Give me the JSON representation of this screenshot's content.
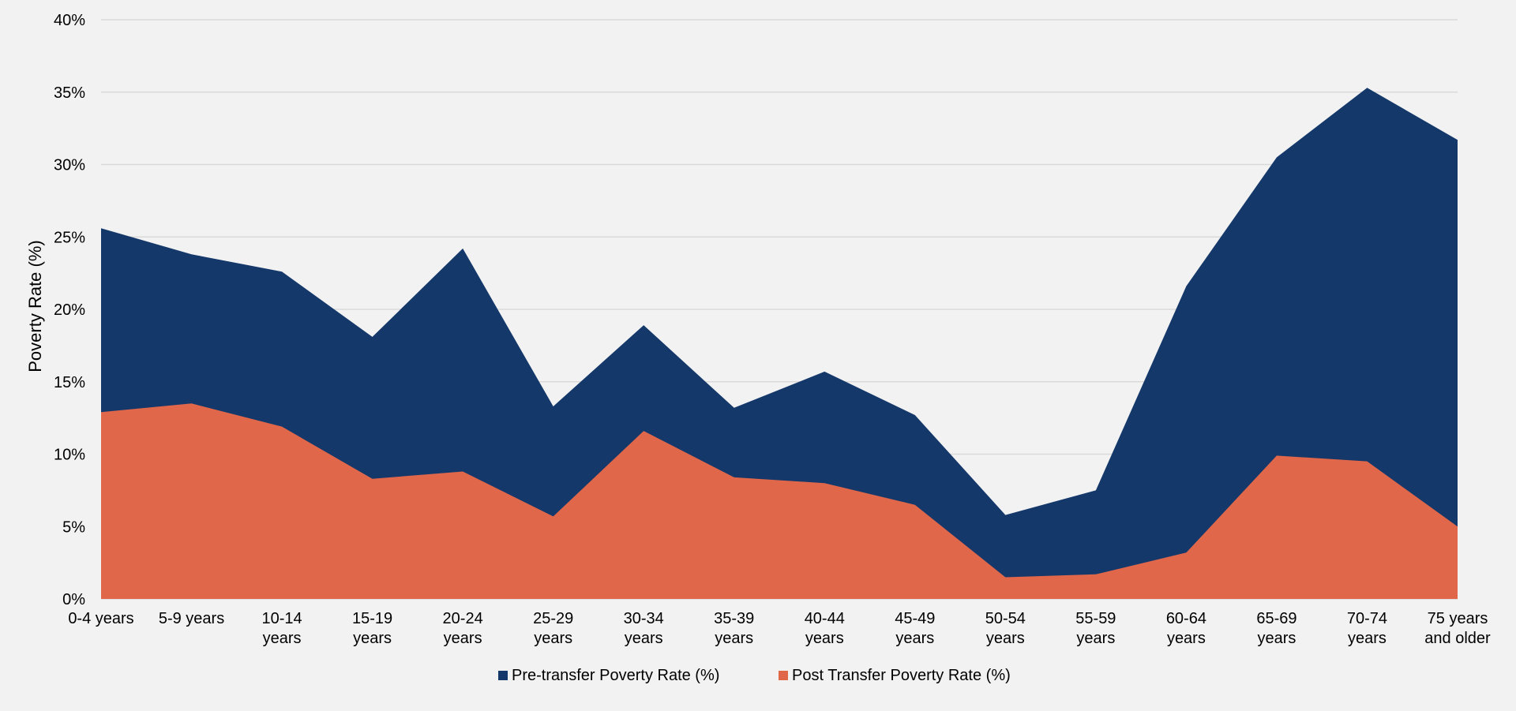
{
  "chart_data": {
    "type": "area",
    "title": "",
    "xlabel": "",
    "ylabel": "Poverty Rate (%)",
    "ylim": [
      0,
      40
    ],
    "y_ticks": [
      "0%",
      "5%",
      "10%",
      "15%",
      "20%",
      "25%",
      "30%",
      "35%",
      "40%"
    ],
    "y_tick_values": [
      0,
      5,
      10,
      15,
      20,
      25,
      30,
      35,
      40
    ],
    "grid": true,
    "legend_position": "bottom-center",
    "categories": [
      [
        "0-4 years"
      ],
      [
        "5-9 years"
      ],
      [
        "10-14",
        "years"
      ],
      [
        "15-19",
        "years"
      ],
      [
        "20-24",
        "years"
      ],
      [
        "25-29",
        "years"
      ],
      [
        "30-34",
        "years"
      ],
      [
        "35-39",
        "years"
      ],
      [
        "40-44",
        "years"
      ],
      [
        "45-49",
        "years"
      ],
      [
        "50-54",
        "years"
      ],
      [
        "55-59",
        "years"
      ],
      [
        "60-64",
        "years"
      ],
      [
        "65-69",
        "years"
      ],
      [
        "70-74",
        "years"
      ],
      [
        "75 years",
        "and older"
      ]
    ],
    "series": [
      {
        "name": "Pre-transfer Poverty Rate (%)",
        "color": "#14386a",
        "values": [
          25.6,
          23.8,
          22.6,
          18.1,
          24.2,
          13.3,
          18.9,
          13.2,
          15.7,
          12.7,
          5.8,
          7.5,
          21.6,
          30.5,
          35.3,
          31.7
        ]
      },
      {
        "name": "Post Transfer Poverty Rate (%)",
        "color": "#e0674a",
        "values": [
          12.9,
          13.5,
          11.9,
          8.3,
          8.8,
          5.7,
          11.6,
          8.4,
          8.0,
          6.5,
          1.5,
          1.7,
          3.2,
          9.9,
          9.5,
          5.0
        ]
      }
    ]
  },
  "colors": {
    "background": "#f2f2f2",
    "gridline": "#d9d9d9"
  }
}
